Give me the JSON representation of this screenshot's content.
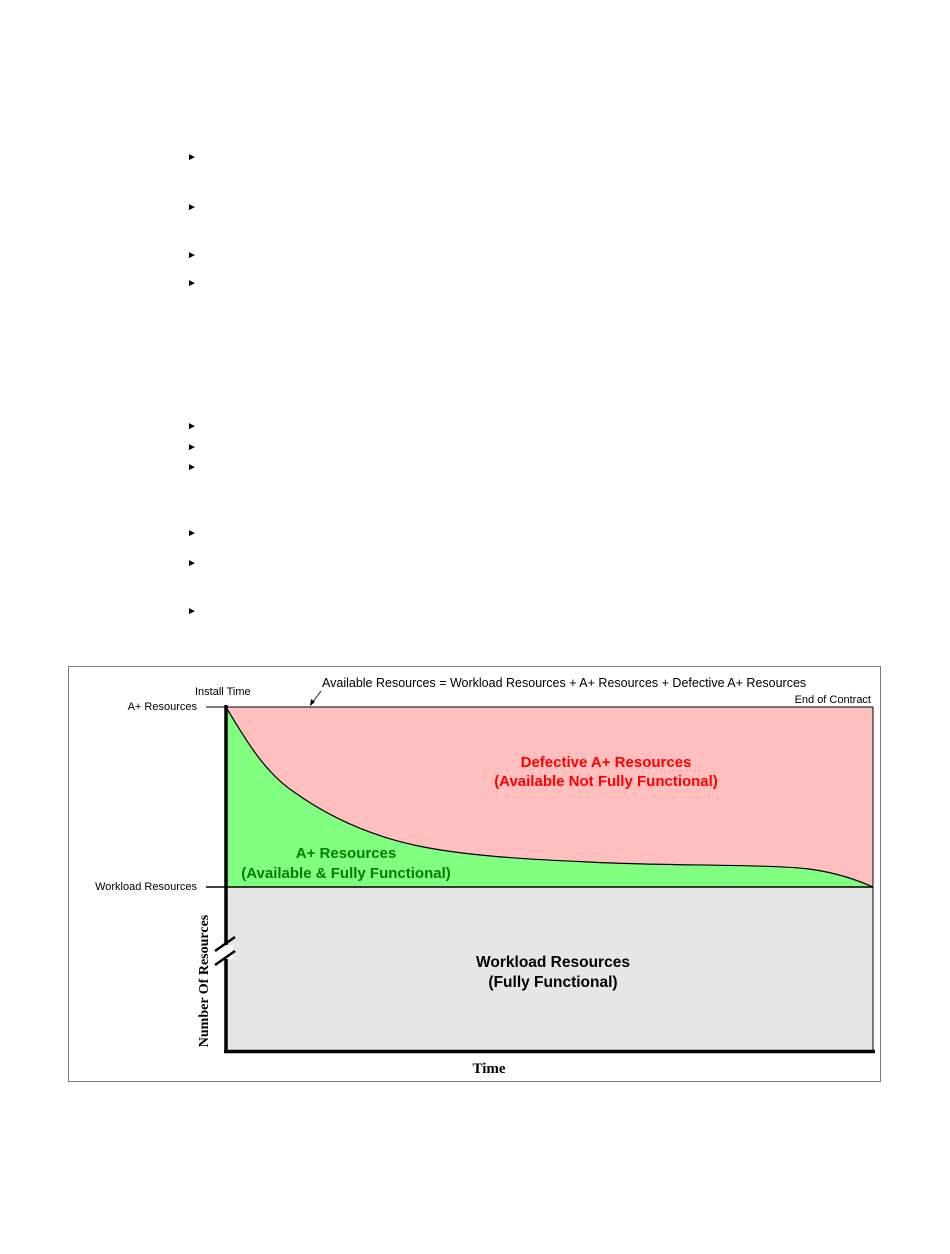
{
  "document": {
    "bullet_marker": "►",
    "bullets_top_count": 4,
    "bullets_bottom_count": 6
  },
  "figure": {
    "equation_label": "Available Resources = Workload Resources + A+ Resources + Defective A+ Resources",
    "install_time_label": "Install Time",
    "end_of_contract_label": "End of Contract",
    "y_label_a_plus": "A+ Resources",
    "y_label_workload": "Workload Resources",
    "y_axis_title": "Number Of Resources",
    "x_axis_title": "Time",
    "defective_region": {
      "title": "Defective A+ Resources",
      "subtitle": "(Available Not Fully Functional)",
      "color": "#ffbfbf",
      "text_color": "#ff0000"
    },
    "a_plus_region": {
      "title": "A+ Resources",
      "subtitle": "(Available & Fully Functional)",
      "color": "#80ff80",
      "text_color": "#008000"
    },
    "workload_region": {
      "title": "Workload Resources",
      "subtitle": "(Fully Functional)",
      "color": "#e6e6e6",
      "text_color": "#000000"
    }
  }
}
